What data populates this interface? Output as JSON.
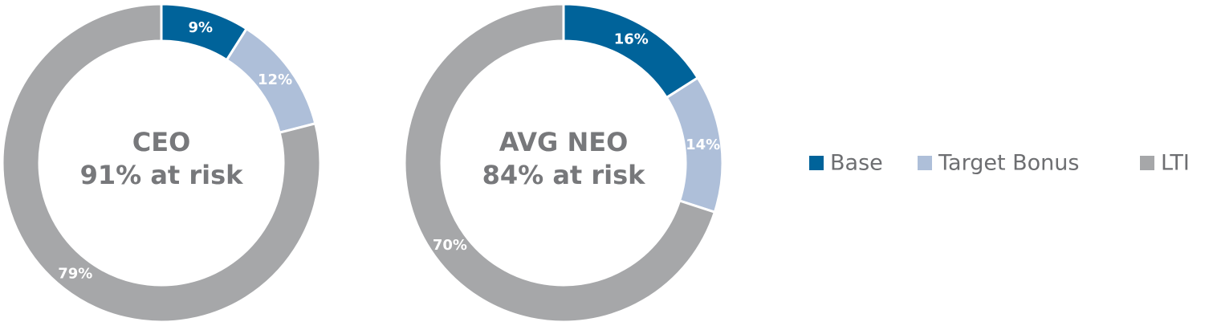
{
  "chart_data": [
    {
      "type": "donut",
      "title": "CEO",
      "subtitle": "91% at risk",
      "categories": [
        "Base",
        "Target Bonus",
        "LTI"
      ],
      "values": [
        9,
        12,
        79
      ],
      "value_labels": [
        "9%",
        "12%",
        "79%"
      ],
      "colors": [
        "#00639a",
        "#aebfd9",
        "#a6a7a9"
      ],
      "legend": "right"
    },
    {
      "type": "donut",
      "title": "AVG NEO",
      "subtitle": "84% at risk",
      "categories": [
        "Base",
        "Target Bonus",
        "LTI"
      ],
      "values": [
        16,
        14,
        70
      ],
      "value_labels": [
        "16%",
        "14%",
        "70%"
      ],
      "colors": [
        "#00639a",
        "#aebfd9",
        "#a6a7a9"
      ]
    }
  ]
}
